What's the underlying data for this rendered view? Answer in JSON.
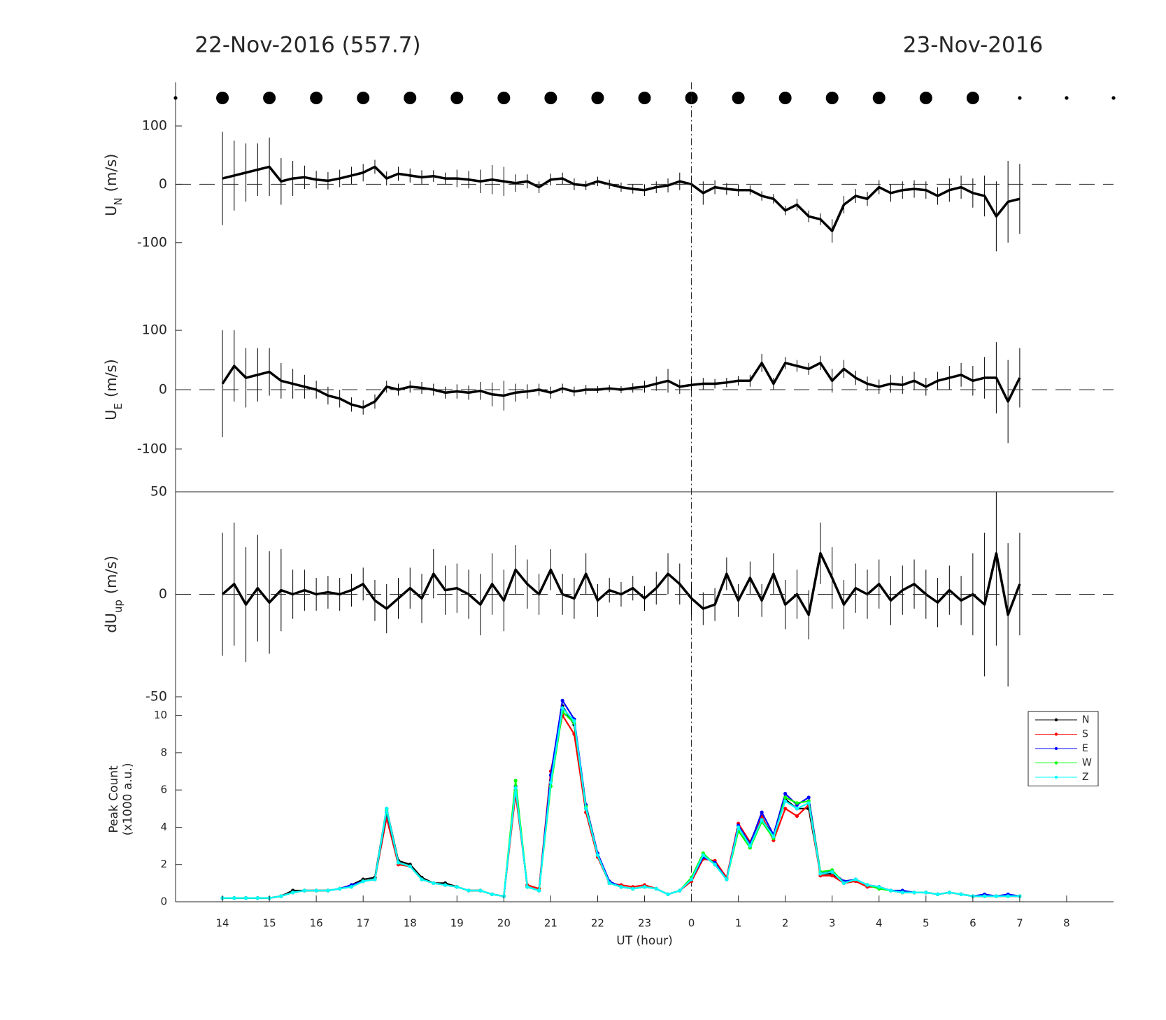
{
  "chart_data": [
    {
      "type": "errorbar",
      "annotations": [
        "22-Nov-2016 (557.7)",
        "23-Nov-2016"
      ],
      "ylabel": {
        "main": "U",
        "sub": "N",
        "unit": "(m/s)"
      },
      "xlim": [
        13,
        33
      ],
      "ylim": [
        -177,
        175
      ],
      "yticks": [
        -100,
        0,
        100
      ],
      "color": "#000000",
      "x": [
        14,
        14.25,
        14.5,
        14.75,
        15,
        15.25,
        15.5,
        15.75,
        16,
        16.25,
        16.5,
        16.75,
        17,
        17.25,
        17.5,
        17.75,
        18,
        18.25,
        18.5,
        18.75,
        19,
        19.25,
        19.5,
        19.75,
        20,
        20.25,
        20.5,
        20.75,
        21,
        21.25,
        21.5,
        21.75,
        22,
        22.25,
        22.5,
        22.75,
        23,
        23.25,
        23.5,
        23.75,
        24,
        24.25,
        24.5,
        24.75,
        25,
        25.25,
        25.5,
        25.75,
        26,
        26.25,
        26.5,
        26.75,
        27,
        27.25,
        27.5,
        27.75,
        28,
        28.25,
        28.5,
        28.75,
        29,
        29.25,
        29.5,
        29.75,
        30,
        30.25,
        30.5,
        30.75,
        31
      ],
      "values": [
        10,
        15,
        20,
        25,
        30,
        5,
        10,
        12,
        8,
        6,
        10,
        15,
        20,
        30,
        10,
        18,
        15,
        12,
        14,
        10,
        10,
        8,
        5,
        8,
        5,
        2,
        5,
        -5,
        8,
        10,
        0,
        -2,
        5,
        0,
        -5,
        -8,
        -10,
        -5,
        -2,
        5,
        0,
        -15,
        -5,
        -8,
        -10,
        -10,
        -20,
        -25,
        -45,
        -35,
        -55,
        -60,
        -80,
        -35,
        -20,
        -25,
        -5,
        -15,
        -10,
        -8,
        -10,
        -20,
        -10,
        -5,
        -15,
        -20,
        -55,
        -30,
        -25
      ],
      "errors": [
        80,
        60,
        50,
        45,
        50,
        40,
        30,
        20,
        15,
        15,
        15,
        15,
        15,
        12,
        12,
        12,
        12,
        12,
        10,
        10,
        15,
        15,
        20,
        25,
        25,
        15,
        12,
        10,
        10,
        10,
        10,
        8,
        8,
        8,
        8,
        8,
        10,
        10,
        12,
        15,
        15,
        20,
        12,
        10,
        10,
        8,
        8,
        8,
        8,
        10,
        10,
        10,
        20,
        15,
        12,
        12,
        12,
        15,
        15,
        15,
        15,
        15,
        20,
        20,
        25,
        35,
        60,
        70,
        60
      ]
    },
    {
      "type": "errorbar",
      "ylabel": {
        "main": "U",
        "sub": "E",
        "unit": "(m/s)"
      },
      "xlim": [
        13,
        33
      ],
      "ylim": [
        -172,
        172
      ],
      "yticks": [
        -100,
        0,
        100
      ],
      "color": "#000000",
      "x": [
        14,
        14.25,
        14.5,
        14.75,
        15,
        15.25,
        15.5,
        15.75,
        16,
        16.25,
        16.5,
        16.75,
        17,
        17.25,
        17.5,
        17.75,
        18,
        18.25,
        18.5,
        18.75,
        19,
        19.25,
        19.5,
        19.75,
        20,
        20.25,
        20.5,
        20.75,
        21,
        21.25,
        21.5,
        21.75,
        22,
        22.25,
        22.5,
        22.75,
        23,
        23.25,
        23.5,
        23.75,
        24,
        24.25,
        24.5,
        24.75,
        25,
        25.25,
        25.5,
        25.75,
        26,
        26.25,
        26.5,
        26.75,
        27,
        27.25,
        27.5,
        27.75,
        28,
        28.25,
        28.5,
        28.75,
        29,
        29.25,
        29.5,
        29.75,
        30,
        30.25,
        30.5,
        30.75,
        31
      ],
      "values": [
        10,
        40,
        20,
        25,
        30,
        15,
        10,
        5,
        0,
        -10,
        -15,
        -25,
        -30,
        -20,
        5,
        0,
        5,
        3,
        0,
        -5,
        -3,
        -5,
        -2,
        -8,
        -10,
        -5,
        -3,
        0,
        -5,
        2,
        -3,
        0,
        0,
        2,
        0,
        3,
        5,
        10,
        15,
        5,
        8,
        10,
        10,
        12,
        15,
        15,
        45,
        10,
        45,
        40,
        35,
        45,
        15,
        35,
        20,
        10,
        5,
        10,
        8,
        15,
        5,
        15,
        20,
        25,
        15,
        20,
        20,
        -20,
        20
      ],
      "errors": [
        90,
        60,
        50,
        45,
        40,
        30,
        25,
        20,
        15,
        15,
        15,
        12,
        12,
        12,
        10,
        10,
        10,
        10,
        10,
        10,
        12,
        12,
        15,
        20,
        25,
        15,
        12,
        10,
        10,
        8,
        8,
        8,
        6,
        6,
        6,
        8,
        10,
        12,
        20,
        12,
        10,
        10,
        8,
        8,
        8,
        10,
        15,
        10,
        10,
        10,
        10,
        12,
        20,
        15,
        12,
        12,
        12,
        15,
        15,
        15,
        15,
        15,
        20,
        20,
        25,
        35,
        60,
        70,
        50
      ]
    },
    {
      "type": "errorbar",
      "ylabel": {
        "main": "dU",
        "sub": "up",
        "unit": "(m/s)"
      },
      "xlim": [
        13,
        33
      ],
      "ylim": [
        -50,
        50
      ],
      "yticks": [
        -50,
        0,
        50
      ],
      "color": "#000000",
      "x": [
        14,
        14.25,
        14.5,
        14.75,
        15,
        15.25,
        15.5,
        15.75,
        16,
        16.25,
        16.5,
        16.75,
        17,
        17.25,
        17.5,
        17.75,
        18,
        18.25,
        18.5,
        18.75,
        19,
        19.25,
        19.5,
        19.75,
        20,
        20.25,
        20.5,
        20.75,
        21,
        21.25,
        21.5,
        21.75,
        22,
        22.25,
        22.5,
        22.75,
        23,
        23.25,
        23.5,
        23.75,
        24,
        24.25,
        24.5,
        24.75,
        25,
        25.25,
        25.5,
        25.75,
        26,
        26.25,
        26.5,
        26.75,
        27,
        27.25,
        27.5,
        27.75,
        28,
        28.25,
        28.5,
        28.75,
        29,
        29.25,
        29.5,
        29.75,
        30,
        30.25,
        30.5,
        30.75,
        31
      ],
      "values": [
        0,
        5,
        -5,
        3,
        -4,
        2,
        0,
        2,
        0,
        1,
        0,
        2,
        5,
        -3,
        -7,
        -2,
        3,
        -2,
        10,
        2,
        3,
        0,
        -5,
        5,
        -3,
        12,
        5,
        0,
        12,
        0,
        -2,
        10,
        -3,
        2,
        0,
        3,
        -2,
        3,
        10,
        5,
        -2,
        -7,
        -5,
        10,
        -3,
        8,
        -3,
        10,
        -5,
        0,
        -10,
        20,
        8,
        -5,
        3,
        0,
        5,
        -3,
        2,
        5,
        0,
        -4,
        2,
        -3,
        0,
        -5,
        20,
        -10,
        5
      ],
      "errors": [
        30,
        30,
        28,
        26,
        25,
        20,
        12,
        10,
        8,
        8,
        8,
        8,
        8,
        10,
        12,
        10,
        10,
        12,
        12,
        12,
        12,
        12,
        15,
        15,
        15,
        12,
        12,
        10,
        10,
        10,
        10,
        10,
        8,
        6,
        6,
        6,
        6,
        8,
        10,
        10,
        8,
        8,
        8,
        8,
        8,
        8,
        8,
        10,
        12,
        12,
        12,
        15,
        15,
        12,
        12,
        12,
        12,
        12,
        12,
        12,
        12,
        12,
        12,
        12,
        20,
        35,
        45,
        35,
        25
      ]
    },
    {
      "type": "line",
      "ylabel": [
        "Peak Count",
        "(x1000 a.u.)"
      ],
      "xlabel": "UT (hour)",
      "xlim": [
        13,
        33
      ],
      "ylim": [
        0,
        11
      ],
      "yticks": [
        0,
        2,
        4,
        6,
        8,
        10
      ],
      "xticks": [
        14,
        15,
        16,
        17,
        18,
        19,
        20,
        21,
        22,
        23,
        {
          "value": 24,
          "label": "0"
        },
        {
          "value": 25,
          "label": "1"
        },
        {
          "value": 26,
          "label": "2"
        },
        {
          "value": 27,
          "label": "3"
        },
        {
          "value": 28,
          "label": "4"
        },
        {
          "value": 29,
          "label": "5"
        },
        {
          "value": 30,
          "label": "6"
        },
        {
          "value": 31,
          "label": "7"
        },
        {
          "value": 32,
          "label": "8"
        }
      ],
      "legend": "upper right",
      "x": [
        14,
        14.25,
        14.5,
        14.75,
        15,
        15.25,
        15.5,
        15.75,
        16,
        16.25,
        16.5,
        16.75,
        17,
        17.25,
        17.5,
        17.75,
        18,
        18.25,
        18.5,
        18.75,
        19,
        19.25,
        19.5,
        19.75,
        20,
        20.25,
        20.5,
        20.75,
        21,
        21.25,
        21.5,
        21.75,
        22,
        22.25,
        22.5,
        22.75,
        23,
        23.25,
        23.5,
        23.75,
        24,
        24.25,
        24.5,
        24.75,
        25,
        25.25,
        25.5,
        25.75,
        26,
        26.25,
        26.5,
        26.75,
        27,
        27.25,
        27.5,
        27.75,
        28,
        28.25,
        28.5,
        28.75,
        29,
        29.25,
        29.5,
        29.75,
        30,
        30.25,
        30.5,
        30.75,
        31
      ],
      "series": [
        {
          "name": "N",
          "color": "#000000",
          "values": [
            0.2,
            0.2,
            0.2,
            0.2,
            0.2,
            0.3,
            0.6,
            0.6,
            0.6,
            0.6,
            0.7,
            0.9,
            1.2,
            1.3,
            5,
            2.2,
            2.0,
            1.3,
            1.0,
            1.0,
            0.8,
            0.6,
            0.6,
            0.4,
            0.3,
            6,
            0.8,
            0.6,
            6.5,
            10.5,
            9.5,
            5,
            2.5,
            1.0,
            0.8,
            0.7,
            0.8,
            0.7,
            0.4,
            0.6,
            1.2,
            2.5,
            2.0,
            1.2,
            4,
            3,
            4.5,
            3.5,
            5.5,
            5,
            5,
            1.5,
            1.5,
            1.0,
            1.2,
            0.9,
            0.8,
            0.6,
            0.5,
            0.5,
            0.5,
            0.4,
            0.5,
            0.4,
            0.3,
            0.3,
            0.3,
            0.3,
            0.3
          ]
        },
        {
          "name": "S",
          "color": "#ff0000",
          "values": [
            0.2,
            0.2,
            0.2,
            0.2,
            0.2,
            0.3,
            0.5,
            0.6,
            0.6,
            0.6,
            0.7,
            0.8,
            1.1,
            1.2,
            4.5,
            2.0,
            1.9,
            1.2,
            1.0,
            0.9,
            0.8,
            0.6,
            0.6,
            0.4,
            0.3,
            5.8,
            0.9,
            0.7,
            7,
            10,
            9,
            4.8,
            2.4,
            1.0,
            0.9,
            0.8,
            0.9,
            0.7,
            0.4,
            0.6,
            1.1,
            2.3,
            2.2,
            1.3,
            4.2,
            3.2,
            4.6,
            3.3,
            5,
            4.6,
            5.2,
            1.4,
            1.4,
            1.0,
            1.1,
            0.8,
            0.8,
            0.6,
            0.5,
            0.5,
            0.5,
            0.4,
            0.5,
            0.4,
            0.3,
            0.3,
            0.3,
            0.3,
            0.3
          ]
        },
        {
          "name": "E",
          "color": "#0000ff",
          "values": [
            0.2,
            0.2,
            0.2,
            0.2,
            0.2,
            0.3,
            0.5,
            0.6,
            0.6,
            0.6,
            0.7,
            0.9,
            1.1,
            1.2,
            4.8,
            2.1,
            1.9,
            1.2,
            1.0,
            0.9,
            0.8,
            0.6,
            0.6,
            0.4,
            0.3,
            6.2,
            0.8,
            0.6,
            6.8,
            10.8,
            9.8,
            5.2,
            2.6,
            1.1,
            0.8,
            0.7,
            0.8,
            0.7,
            0.4,
            0.6,
            1.2,
            2.4,
            2.1,
            1.2,
            4.1,
            3.1,
            4.8,
            3.6,
            5.8,
            5.2,
            5.6,
            1.6,
            1.6,
            1.1,
            1.2,
            0.9,
            0.8,
            0.6,
            0.6,
            0.5,
            0.5,
            0.4,
            0.5,
            0.4,
            0.3,
            0.4,
            0.3,
            0.4,
            0.3
          ]
        },
        {
          "name": "W",
          "color": "#00ff00",
          "values": [
            0.2,
            0.2,
            0.2,
            0.2,
            0.2,
            0.3,
            0.5,
            0.6,
            0.6,
            0.6,
            0.7,
            0.8,
            1.1,
            1.2,
            4.9,
            2.1,
            1.9,
            1.2,
            1.0,
            0.9,
            0.8,
            0.6,
            0.6,
            0.4,
            0.3,
            6.5,
            0.8,
            0.6,
            6.2,
            10.2,
            9.6,
            5.1,
            2.5,
            1.0,
            0.8,
            0.7,
            0.8,
            0.7,
            0.4,
            0.6,
            1.3,
            2.6,
            2.0,
            1.2,
            3.8,
            2.9,
            4.3,
            3.4,
            5.6,
            5.3,
            5.4,
            1.6,
            1.7,
            1.0,
            1.2,
            0.9,
            0.7,
            0.6,
            0.5,
            0.5,
            0.5,
            0.4,
            0.5,
            0.4,
            0.3,
            0.3,
            0.3,
            0.3,
            0.3
          ]
        },
        {
          "name": "Z",
          "color": "#00ffff",
          "values": [
            0.2,
            0.2,
            0.2,
            0.2,
            0.2,
            0.3,
            0.5,
            0.6,
            0.6,
            0.6,
            0.7,
            0.8,
            1.1,
            1.2,
            5,
            2.1,
            1.9,
            1.2,
            1.0,
            0.9,
            0.8,
            0.6,
            0.6,
            0.4,
            0.3,
            6.1,
            0.8,
            0.6,
            6.4,
            10.4,
            9.7,
            5,
            2.5,
            1.0,
            0.8,
            0.7,
            0.8,
            0.7,
            0.4,
            0.6,
            1.2,
            2.5,
            2.0,
            1.2,
            4,
            3,
            4.4,
            3.5,
            5.4,
            5,
            5.3,
            1.5,
            1.6,
            1.0,
            1.2,
            0.9,
            0.8,
            0.6,
            0.5,
            0.5,
            0.5,
            0.4,
            0.5,
            0.4,
            0.3,
            0.3,
            0.3,
            0.3,
            0.3
          ]
        }
      ]
    }
  ]
}
